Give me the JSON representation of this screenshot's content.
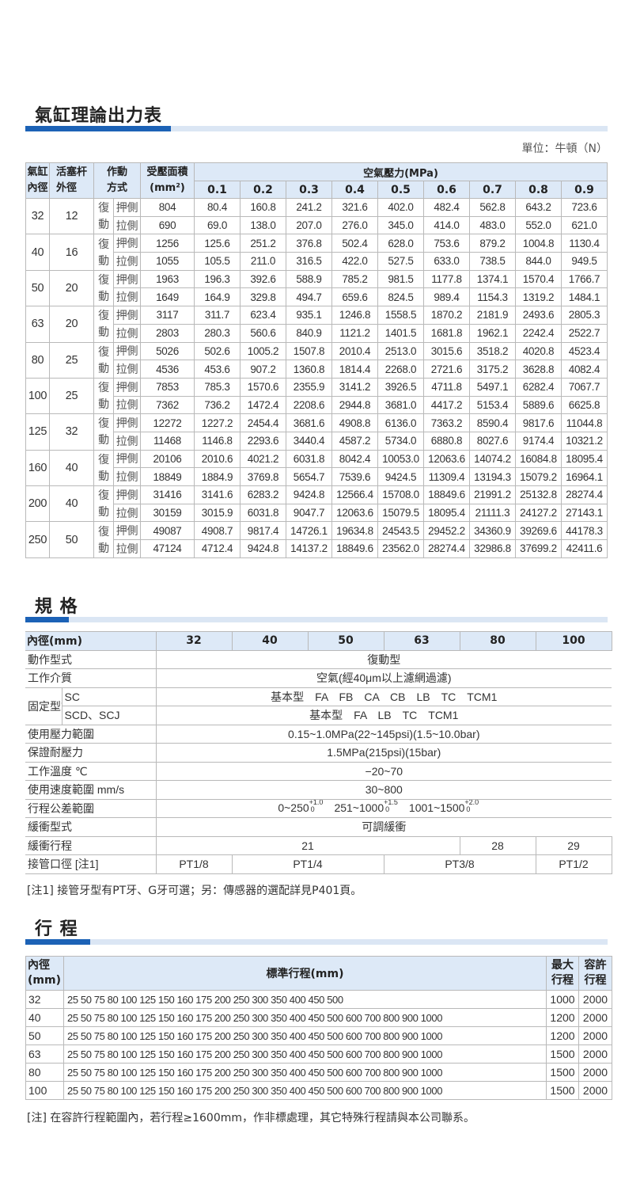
{
  "force_section": {
    "title": "氣缸理論出力表",
    "unit": "單位：牛頓（N）",
    "headers": {
      "bore": "氣缸內徑",
      "rod": "活塞杆外徑",
      "action": "作動方式",
      "area": "受壓面積",
      "area_unit": "(mm²)",
      "pressure": "空氣壓力(MPa)",
      "pressures": [
        "0.1",
        "0.2",
        "0.3",
        "0.4",
        "0.5",
        "0.6",
        "0.7",
        "0.8",
        "0.9"
      ]
    },
    "action_type": [
      "復",
      "動"
    ],
    "sides": [
      "押側",
      "拉側"
    ],
    "rows": [
      {
        "bore": "32",
        "rod": "12",
        "push": [
          "804",
          "80.4",
          "160.8",
          "241.2",
          "321.6",
          "402.0",
          "482.4",
          "562.8",
          "643.2",
          "723.6"
        ],
        "pull": [
          "690",
          "69.0",
          "138.0",
          "207.0",
          "276.0",
          "345.0",
          "414.0",
          "483.0",
          "552.0",
          "621.0"
        ]
      },
      {
        "bore": "40",
        "rod": "16",
        "push": [
          "1256",
          "125.6",
          "251.2",
          "376.8",
          "502.4",
          "628.0",
          "753.6",
          "879.2",
          "1004.8",
          "1130.4"
        ],
        "pull": [
          "1055",
          "105.5",
          "211.0",
          "316.5",
          "422.0",
          "527.5",
          "633.0",
          "738.5",
          "844.0",
          "949.5"
        ]
      },
      {
        "bore": "50",
        "rod": "20",
        "push": [
          "1963",
          "196.3",
          "392.6",
          "588.9",
          "785.2",
          "981.5",
          "1177.8",
          "1374.1",
          "1570.4",
          "1766.7"
        ],
        "pull": [
          "1649",
          "164.9",
          "329.8",
          "494.7",
          "659.6",
          "824.5",
          "989.4",
          "1154.3",
          "1319.2",
          "1484.1"
        ]
      },
      {
        "bore": "63",
        "rod": "20",
        "push": [
          "3117",
          "311.7",
          "623.4",
          "935.1",
          "1246.8",
          "1558.5",
          "1870.2",
          "2181.9",
          "2493.6",
          "2805.3"
        ],
        "pull": [
          "2803",
          "280.3",
          "560.6",
          "840.9",
          "1121.2",
          "1401.5",
          "1681.8",
          "1962.1",
          "2242.4",
          "2522.7"
        ]
      },
      {
        "bore": "80",
        "rod": "25",
        "push": [
          "5026",
          "502.6",
          "1005.2",
          "1507.8",
          "2010.4",
          "2513.0",
          "3015.6",
          "3518.2",
          "4020.8",
          "4523.4"
        ],
        "pull": [
          "4536",
          "453.6",
          "907.2",
          "1360.8",
          "1814.4",
          "2268.0",
          "2721.6",
          "3175.2",
          "3628.8",
          "4082.4"
        ]
      },
      {
        "bore": "100",
        "rod": "25",
        "push": [
          "7853",
          "785.3",
          "1570.6",
          "2355.9",
          "3141.2",
          "3926.5",
          "4711.8",
          "5497.1",
          "6282.4",
          "7067.7"
        ],
        "pull": [
          "7362",
          "736.2",
          "1472.4",
          "2208.6",
          "2944.8",
          "3681.0",
          "4417.2",
          "5153.4",
          "5889.6",
          "6625.8"
        ]
      },
      {
        "bore": "125",
        "rod": "32",
        "push": [
          "12272",
          "1227.2",
          "2454.4",
          "3681.6",
          "4908.8",
          "6136.0",
          "7363.2",
          "8590.4",
          "9817.6",
          "11044.8"
        ],
        "pull": [
          "11468",
          "1146.8",
          "2293.6",
          "3440.4",
          "4587.2",
          "5734.0",
          "6880.8",
          "8027.6",
          "9174.4",
          "10321.2"
        ]
      },
      {
        "bore": "160",
        "rod": "40",
        "push": [
          "20106",
          "2010.6",
          "4021.2",
          "6031.8",
          "8042.4",
          "10053.0",
          "12063.6",
          "14074.2",
          "16084.8",
          "18095.4"
        ],
        "pull": [
          "18849",
          "1884.9",
          "3769.8",
          "5654.7",
          "7539.6",
          "9424.5",
          "11309.4",
          "13194.3",
          "15079.2",
          "16964.1"
        ]
      },
      {
        "bore": "200",
        "rod": "40",
        "push": [
          "31416",
          "3141.6",
          "6283.2",
          "9424.8",
          "12566.4",
          "15708.0",
          "18849.6",
          "21991.2",
          "25132.8",
          "28274.4"
        ],
        "pull": [
          "30159",
          "3015.9",
          "6031.8",
          "9047.7",
          "12063.6",
          "15079.5",
          "18095.4",
          "21111.3",
          "24127.2",
          "27143.1"
        ]
      },
      {
        "bore": "250",
        "rod": "50",
        "push": [
          "49087",
          "4908.7",
          "9817.4",
          "14726.1",
          "19634.8",
          "24543.5",
          "29452.2",
          "34360.9",
          "39269.6",
          "44178.3"
        ],
        "pull": [
          "47124",
          "4712.4",
          "9424.8",
          "14137.2",
          "18849.6",
          "23562.0",
          "28274.4",
          "32986.8",
          "37699.2",
          "42411.6"
        ]
      }
    ]
  },
  "spec_section": {
    "title": "規 格",
    "header_label": "內徑(mm)",
    "bores": [
      "32",
      "40",
      "50",
      "63",
      "80",
      "100"
    ],
    "action_label": "動作型式",
    "action_value": "復動型",
    "medium_label": "工作介質",
    "medium_value": "空氣(經40μm以上濾網過濾)",
    "mount_label": "固定型式",
    "mount_rows": [
      {
        "sub": "SC",
        "value": "基本型　FA　FB　CA　CB　LB　TC　TCM1"
      },
      {
        "sub": "SCD、SCJ",
        "value": "基本型　FA　LB　TC　TCM1"
      }
    ],
    "pressure_label": "使用壓力範圍",
    "pressure_value": "0.15~1.0MPa(22~145psi)(1.5~10.0bar)",
    "proof_label": "保證耐壓力",
    "proof_value": "1.5MPa(215psi)(15bar)",
    "temp_label": "工作溫度 ℃",
    "temp_value": "−20~70",
    "speed_label": "使用速度範圍 mm/s",
    "speed_value": "30~800",
    "tolerance_label": "行程公差範圍",
    "tolerances": [
      {
        "range": "0~250",
        "plus": "+1.0",
        "minus": "0"
      },
      {
        "range": "251~1000",
        "plus": "+1.5",
        "minus": "0"
      },
      {
        "range": "1001~1500",
        "plus": "+2.0",
        "minus": "0"
      }
    ],
    "cushion_label": "緩衝型式",
    "cushion_value": "可調緩衝",
    "cushion_stroke_label": "緩衝行程",
    "cushion_strokes": [
      {
        "value": "21",
        "span": 4
      },
      {
        "value": "28",
        "span": 1
      },
      {
        "value": "29",
        "span": 1
      }
    ],
    "port_label": "接管口徑 [注1]",
    "ports": [
      {
        "value": "PT1/8",
        "span": 1
      },
      {
        "value": "PT1/4",
        "span": 2
      },
      {
        "value": "PT3/8",
        "span": 2
      },
      {
        "value": "PT1/2",
        "span": 1
      }
    ],
    "note": "[注1] 接管牙型有PT牙、G牙可選；另：傳感器的選配詳見P401頁。"
  },
  "stroke_section": {
    "title": "行 程",
    "headers": {
      "bore": "內徑(mm)",
      "standard": "標準行程(mm)",
      "max": "最大行程",
      "allow": "容許行程"
    },
    "rows": [
      {
        "bore": "32",
        "strokes": "25 50 75 80 100 125 150 160 175 200 250 300 350 400 450 500",
        "max": "1000",
        "allow": "2000"
      },
      {
        "bore": "40",
        "strokes": "25 50 75 80 100 125 150 160 175 200 250 300 350 400 450 500 600 700 800 900 1000",
        "max": "1200",
        "allow": "2000"
      },
      {
        "bore": "50",
        "strokes": "25 50 75 80 100 125 150 160 175 200 250 300 350 400 450 500 600 700 800 900 1000",
        "max": "1200",
        "allow": "2000"
      },
      {
        "bore": "63",
        "strokes": "25 50 75 80 100 125 150 160 175 200 250 300 350 400 450 500 600 700 800 900 1000",
        "max": "1500",
        "allow": "2000"
      },
      {
        "bore": "80",
        "strokes": "25 50 75 80 100 125 150 160 175 200 250 300 350 400 450 500 600 700 800 900 1000",
        "max": "1500",
        "allow": "2000"
      },
      {
        "bore": "100",
        "strokes": "25 50 75 80 100 125 150 160 175 200 250 300 350 400 450 500 600 700 800 900 1000",
        "max": "1500",
        "allow": "2000"
      }
    ],
    "note": "[注] 在容許行程範圍內，若行程≥1600mm，作非標處理，其它特殊行程請與本公司聯系。"
  },
  "colors": {
    "accent": "#1c62b6",
    "accent_light": "#dbe6f4",
    "header_bg": "#dde9f7"
  }
}
